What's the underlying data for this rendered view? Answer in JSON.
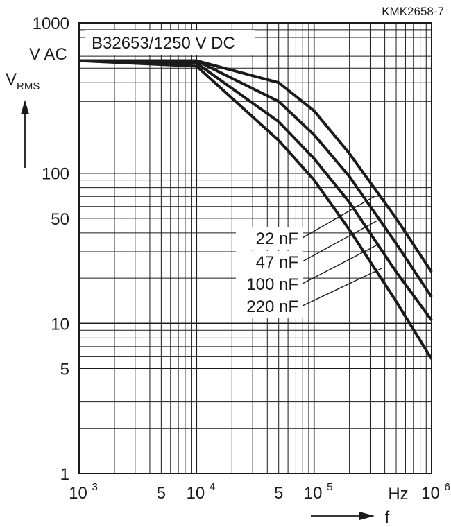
{
  "chart_data": {
    "type": "line",
    "code": "KMK2658-7",
    "title": "B32653/1250 V DC",
    "xscale": "log",
    "yscale": "log",
    "xlim": [
      1000,
      1000000
    ],
    "ylim": [
      1,
      1000
    ],
    "grid": true,
    "ylabel": {
      "main": "V",
      "sub": "RMS"
    },
    "yunit": "V AC",
    "xlabel": "f",
    "xunit": "Hz",
    "y_tick_labels": [
      "1000",
      "100",
      "50",
      "10",
      "5",
      "1"
    ],
    "x_tick_labels": [
      {
        "base": "10",
        "exp": "3"
      },
      {
        "text": "5"
      },
      {
        "base": "10",
        "exp": "4"
      },
      {
        "text": "5"
      },
      {
        "base": "10",
        "exp": "5"
      },
      {
        "base": "10",
        "exp": "6"
      }
    ],
    "series": [
      {
        "name": "22 nF",
        "x": [
          1000,
          10000,
          50000,
          100000,
          200000,
          500000,
          1000000
        ],
        "y": [
          560,
          560,
          400,
          260,
          135,
          50,
          22
        ]
      },
      {
        "name": "47 nF",
        "x": [
          1000,
          10000,
          50000,
          100000,
          200000,
          500000,
          1000000
        ],
        "y": [
          560,
          560,
          300,
          180,
          95,
          34,
          15
        ]
      },
      {
        "name": "100 nF",
        "x": [
          1000,
          10000,
          50000,
          100000,
          200000,
          500000,
          1000000
        ],
        "y": [
          560,
          540,
          220,
          125,
          64,
          22,
          10.5
        ]
      },
      {
        "name": "220 nF",
        "x": [
          1000,
          10000,
          50000,
          100000,
          200000,
          500000,
          1000000
        ],
        "y": [
          560,
          515,
          165,
          90,
          42,
          14,
          5.8
        ]
      }
    ]
  }
}
